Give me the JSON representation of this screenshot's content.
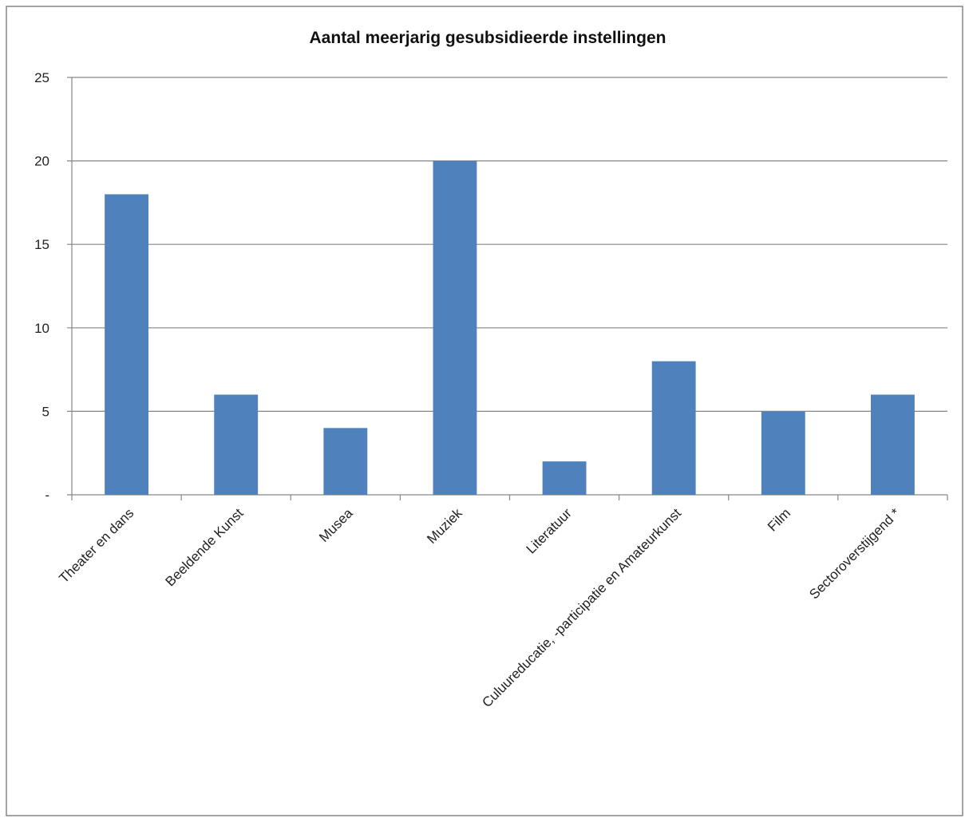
{
  "chart_data": {
    "type": "bar",
    "title": "Aantal meerjarig gesubsidieerde instellingen",
    "xlabel": "",
    "ylabel": "",
    "categories": [
      "Theater en dans",
      "Beeldende Kunst",
      "Musea",
      "Muziek",
      "Literatuur",
      "Culuureducatie, -participatie en Amateurkunst",
      "Film",
      "Sectoroverstijgend *"
    ],
    "values": [
      18,
      6,
      4,
      20,
      2,
      8,
      5,
      6
    ],
    "ylim": [
      0,
      25
    ],
    "yticks": [
      0,
      5,
      10,
      15,
      20,
      25
    ],
    "ytick_labels": [
      "-",
      "5",
      "10",
      "15",
      "20",
      "25"
    ],
    "grid": "horizontal",
    "legend": "none",
    "bar_color": "#4f81bd",
    "grid_color": "#868686",
    "border_color": "#868686"
  }
}
